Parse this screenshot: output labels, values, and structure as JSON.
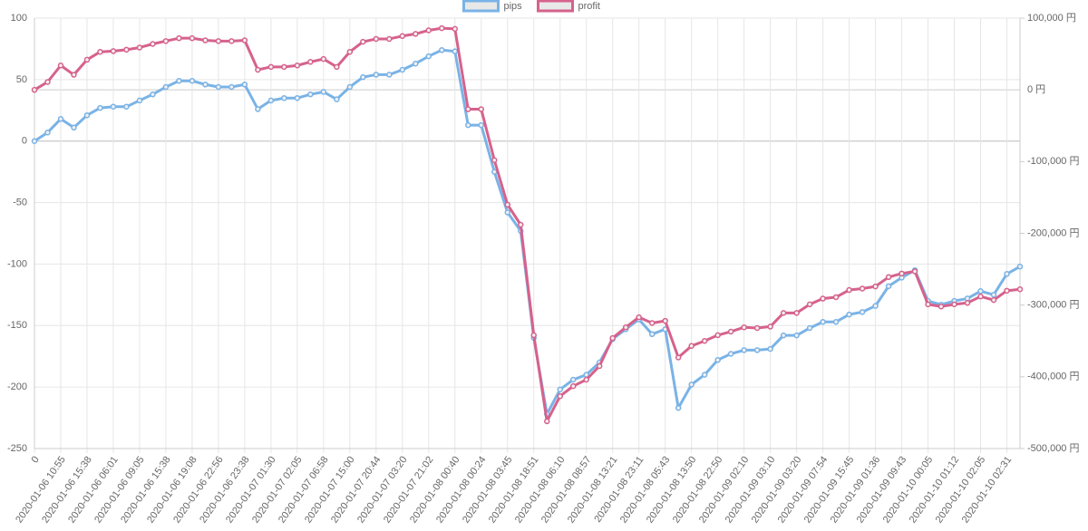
{
  "chart_data": {
    "type": "line",
    "categories": [
      "0",
      null,
      "2020-01-06 10:55",
      null,
      "2020-01-06 15:38",
      null,
      "2020-01-06 06:01",
      null,
      "2020-01-06 09:05",
      null,
      "2020-01-06 15:38",
      null,
      "2020-01-06 19:08",
      null,
      "2020-01-06 22:56",
      null,
      "2020-01-06 23:38",
      null,
      "2020-01-07 01:30",
      null,
      "2020-01-07 02:05",
      null,
      "2020-01-07 06:58",
      null,
      "2020-01-07 15:00",
      null,
      "2020-01-07 20:44",
      null,
      "2020-01-07 03:20",
      null,
      "2020-01-07 21:02",
      null,
      "2020-01-08 00:40",
      null,
      "2020-01-08 00:24",
      null,
      "2020-01-08 03:45",
      null,
      "2020-01-08 18:51",
      null,
      "2020-01-08 06:10",
      null,
      "2020-01-08 08:57",
      null,
      "2020-01-08 13:21",
      null,
      "2020-01-08 23:11",
      null,
      "2020-01-08 05:43",
      null,
      "2020-01-08 13:50",
      null,
      "2020-01-08 22:50",
      null,
      "2020-01-09 02:10",
      null,
      "2020-01-09 03:10",
      null,
      "2020-01-09 03:20",
      null,
      "2020-01-09 07:54",
      null,
      "2020-01-09 15:45",
      null,
      "2020-01-09 01:36",
      null,
      "2020-01-09 09:43",
      null,
      "2020-01-10 00:05",
      null,
      "2020-01-10 01:12",
      null,
      "2020-01-10 02:05",
      null,
      "2020-01-10 02:31",
      null
    ],
    "series": [
      {
        "name": "pips",
        "color": "#7ab3e6",
        "values": [
          0,
          7,
          18,
          11,
          21,
          27,
          28,
          28,
          33,
          38,
          44,
          49,
          49,
          46,
          44,
          44,
          46,
          26,
          33,
          35,
          35,
          38,
          40,
          34,
          44,
          52,
          54,
          54,
          58,
          63,
          69,
          74,
          73,
          13,
          13,
          -25,
          -58,
          -73,
          -160,
          -222,
          -202,
          -194,
          -190,
          -180,
          -161,
          -153,
          -145,
          -157,
          -153,
          -217,
          -198,
          -190,
          -178,
          -173,
          -170,
          -170,
          -169,
          -158,
          -158,
          -152,
          -147,
          -147,
          -141,
          -139,
          -134,
          -118,
          -111,
          -105,
          -130,
          -133,
          -130,
          -128,
          -122,
          -125,
          -108,
          -102
        ]
      },
      {
        "name": "profit",
        "color": "#d6628c",
        "axis": "y2",
        "values": [
          0,
          11000,
          34000,
          21000,
          42000,
          53000,
          54000,
          56000,
          59000,
          64000,
          68000,
          72000,
          72000,
          69000,
          68000,
          68000,
          69000,
          28000,
          32000,
          32000,
          34000,
          39000,
          43000,
          32000,
          53000,
          67000,
          71000,
          71000,
          75000,
          78000,
          83000,
          86000,
          85000,
          -27000,
          -27000,
          -98000,
          -160000,
          -188000,
          -342000,
          -462000,
          -427000,
          -413000,
          -404000,
          -385000,
          -346000,
          -331000,
          -317000,
          -325000,
          -322000,
          -373000,
          -357000,
          -350000,
          -342000,
          -337000,
          -331000,
          -332000,
          -330000,
          -311000,
          -311000,
          -299000,
          -291000,
          -289000,
          -279000,
          -277000,
          -274000,
          -261000,
          -256000,
          -253000,
          -299000,
          -302000,
          -299000,
          -297000,
          -288000,
          -293000,
          -280000,
          -278000
        ]
      }
    ],
    "ylim": [
      -250,
      100
    ],
    "yticks": [
      -250,
      -200,
      -150,
      -100,
      -50,
      0,
      50,
      100
    ],
    "y2lim": [
      -500000,
      100000
    ],
    "y2ticks": [
      {
        "value": -500000,
        "label": "-500,000 円"
      },
      {
        "value": -400000,
        "label": "-400,000 円"
      },
      {
        "value": -300000,
        "label": "-300,000 円"
      },
      {
        "value": -200000,
        "label": "-200,000 円"
      },
      {
        "value": -100000,
        "label": "-100,000 円"
      },
      {
        "value": 0,
        "label": "0 円"
      },
      {
        "value": 100000,
        "label": "100,000 円"
      }
    ],
    "grid": true,
    "legend": "top"
  }
}
